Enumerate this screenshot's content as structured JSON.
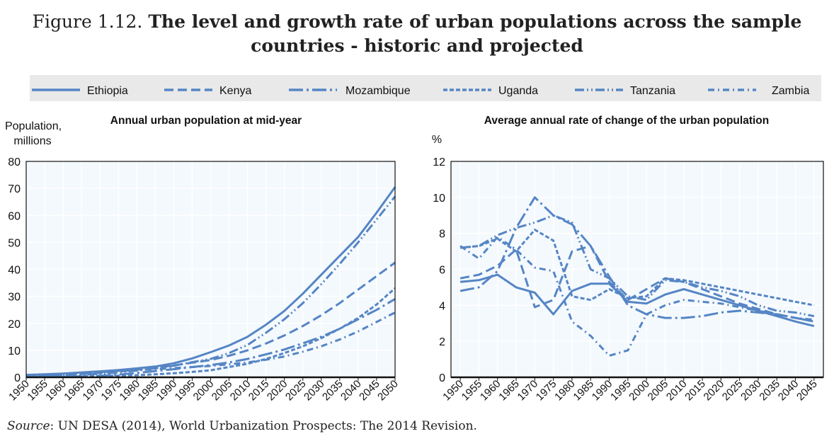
{
  "figure": {
    "number": "Figure 1.12.",
    "title": "The level and growth rate of urban populations across the sample countries - historic and projected",
    "source_label": "Source",
    "source_text": ": UN DESA (2014), World Urbanization Prospects: The 2014 Revision."
  },
  "legend": {
    "placement": "top",
    "entries": [
      {
        "name": "Ethiopia",
        "dash": "solid"
      },
      {
        "name": "Kenya",
        "dash": "dashed"
      },
      {
        "name": "Mozambique",
        "dash": "long-dash-dot"
      },
      {
        "name": "Uganda",
        "dash": "short-dash"
      },
      {
        "name": "Tanzania",
        "dash": "dash-dot-dot"
      },
      {
        "name": "Zambia",
        "dash": "dash-dot"
      }
    ]
  },
  "colors": {
    "series": "#5585c5",
    "plot_bg": "#f4f9fd",
    "legend_bg": "#e9e9e9"
  },
  "chart_data": [
    {
      "type": "line",
      "title": "Annual urban population at mid-year",
      "ylabel": "Population, millions",
      "xlabel": "",
      "ylim": [
        0,
        80
      ],
      "yticks": [
        0,
        10,
        20,
        30,
        40,
        50,
        60,
        70,
        80
      ],
      "xlim": [
        1950,
        2050
      ],
      "x": [
        1950,
        1955,
        1960,
        1965,
        1970,
        1975,
        1980,
        1985,
        1990,
        1995,
        2000,
        2005,
        2010,
        2015,
        2020,
        2025,
        2030,
        2035,
        2040,
        2045,
        2050
      ],
      "grid": true,
      "series": [
        {
          "name": "Ethiopia",
          "values": [
            0.9,
            1.1,
            1.4,
            1.8,
            2.2,
            2.7,
            3.3,
            4.0,
            5.2,
            7.0,
            9.3,
            11.8,
            15,
            19.5,
            24.6,
            31,
            38,
            45,
            52,
            61,
            70.5
          ]
        },
        {
          "name": "Kenya",
          "values": [
            0.6,
            0.7,
            0.9,
            1.2,
            1.6,
            2.1,
            2.8,
            3.5,
            4.4,
            5.4,
            6.4,
            8.0,
            10,
            12.5,
            15.5,
            19,
            23,
            27.5,
            32.5,
            37.5,
            42.5
          ]
        },
        {
          "name": "Mozambique",
          "values": [
            0.1,
            0.15,
            0.2,
            0.3,
            0.6,
            1.0,
            1.6,
            2.3,
            3.0,
            3.8,
            4.5,
            5.5,
            6.8,
            8.5,
            10.3,
            12.6,
            15,
            18,
            21.5,
            25,
            29
          ]
        },
        {
          "name": "Uganda",
          "values": [
            0.2,
            0.2,
            0.3,
            0.4,
            0.5,
            0.6,
            0.8,
            1.1,
            1.5,
            2.0,
            2.6,
            3.8,
            5.0,
            6.8,
            9,
            11.5,
            14.5,
            18,
            22,
            27,
            33
          ]
        },
        {
          "name": "Tanzania",
          "values": [
            0.3,
            0.4,
            0.6,
            0.9,
            1.3,
            1.8,
            2.5,
            3.3,
            4.3,
            5.6,
            6.8,
            9.0,
            12,
            16.5,
            21.5,
            27.5,
            34.5,
            42,
            50,
            58.5,
            67
          ]
        },
        {
          "name": "Zambia",
          "values": [
            0.5,
            0.7,
            1.0,
            1.4,
            1.9,
            2.4,
            2.7,
            3.0,
            3.4,
            3.8,
            4.2,
            4.8,
            5.5,
            6.5,
            7.7,
            9.5,
            11.5,
            14,
            17,
            20.5,
            24
          ]
        }
      ]
    },
    {
      "type": "line",
      "title": "Average annual rate of change of the urban population",
      "ylabel": "%",
      "xlabel": "",
      "ylim": [
        0,
        12
      ],
      "yticks": [
        0,
        2,
        4,
        6,
        8,
        10,
        12
      ],
      "categories": [
        "1950",
        "1955",
        "1960",
        "1965",
        "1970",
        "1975",
        "1980",
        "1985",
        "1990",
        "1995",
        "2000",
        "2005",
        "2010",
        "2015",
        "2020",
        "2025",
        "2030",
        "2035",
        "2040",
        "2045"
      ],
      "grid": true,
      "series": [
        {
          "name": "Ethiopia",
          "values": [
            5.3,
            5.4,
            5.7,
            5.0,
            4.7,
            3.5,
            4.8,
            5.2,
            5.2,
            4.2,
            4.1,
            4.6,
            4.9,
            4.6,
            4.3,
            4.0,
            3.7,
            3.4,
            3.1,
            2.85
          ]
        },
        {
          "name": "Kenya",
          "values": [
            5.5,
            5.7,
            6.2,
            7.1,
            3.9,
            4.3,
            7.0,
            7.3,
            5.3,
            4.3,
            4.9,
            5.5,
            5.3,
            4.9,
            4.5,
            4.1,
            3.8,
            3.5,
            3.3,
            3.1
          ]
        },
        {
          "name": "Mozambique",
          "values": [
            4.8,
            5.0,
            5.9,
            8.3,
            10.0,
            9.0,
            8.5,
            7.3,
            5.6,
            4.0,
            3.5,
            3.3,
            3.3,
            3.4,
            3.6,
            3.7,
            3.6,
            3.5,
            3.3,
            3.1
          ]
        },
        {
          "name": "Uganda",
          "values": [
            7.2,
            7.3,
            7.7,
            7.0,
            8.2,
            7.6,
            4.5,
            4.3,
            4.9,
            4.4,
            4.5,
            5.5,
            5.4,
            5.2,
            5.0,
            4.8,
            4.6,
            4.4,
            4.2,
            4.0
          ]
        },
        {
          "name": "Tanzania",
          "values": [
            7.2,
            7.3,
            7.9,
            8.3,
            8.6,
            9.0,
            8.6,
            6.0,
            5.5,
            4.5,
            4.3,
            5.4,
            5.3,
            5.0,
            4.8,
            4.5,
            4.0,
            3.7,
            3.6,
            3.4
          ]
        },
        {
          "name": "Zambia",
          "values": [
            7.3,
            6.6,
            7.8,
            7.1,
            6.1,
            5.9,
            3.1,
            2.3,
            1.2,
            1.5,
            3.5,
            4.0,
            4.3,
            4.2,
            4.1,
            3.9,
            3.7,
            3.5,
            3.3,
            3.2
          ]
        }
      ]
    }
  ]
}
